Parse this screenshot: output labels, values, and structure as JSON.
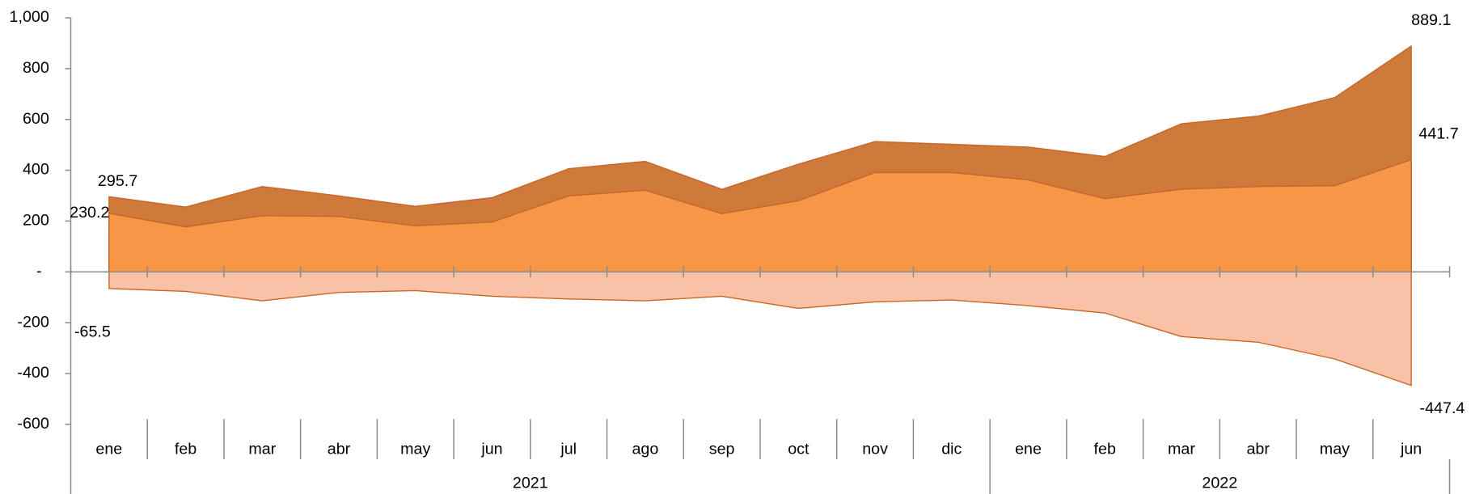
{
  "chart_data": {
    "type": "area",
    "categories": [
      "ene",
      "feb",
      "mar",
      "abr",
      "may",
      "jun",
      "jul",
      "ago",
      "sep",
      "oct",
      "nov",
      "dic",
      "ene",
      "feb",
      "mar",
      "abr",
      "may",
      "jun"
    ],
    "groups": [
      {
        "label": "2021",
        "span": 12
      },
      {
        "label": "2022",
        "span": 6
      }
    ],
    "series": [
      {
        "color": "#cd7a3a",
        "values": [
          295.7,
          255,
          336,
          299,
          258,
          292,
          406,
          435,
          325,
          424,
          513,
          502,
          491,
          454,
          583,
          613,
          686,
          889.1
        ],
        "value_labels": [
          "295.7",
          null,
          null,
          null,
          null,
          null,
          null,
          null,
          null,
          null,
          null,
          null,
          null,
          null,
          null,
          null,
          null,
          "889.1"
        ]
      },
      {
        "color": "#f79646",
        "values": [
          230.2,
          177,
          221,
          218,
          181,
          196,
          299,
          321,
          229,
          280,
          391,
          391,
          362,
          288,
          325,
          336,
          339,
          441.7
        ],
        "value_labels": [
          "230.2",
          null,
          null,
          null,
          null,
          null,
          null,
          null,
          null,
          null,
          null,
          null,
          null,
          null,
          null,
          null,
          null,
          "441.7"
        ]
      },
      {
        "color": "#f9c2a7",
        "values": [
          -65.5,
          -77,
          -114,
          -81,
          -74,
          -96,
          -107,
          -114,
          -96,
          -144,
          -118,
          -111,
          -133,
          -162,
          -255,
          -277,
          -343,
          -447.4
        ],
        "value_labels": [
          "-65.5",
          null,
          null,
          null,
          null,
          null,
          null,
          null,
          null,
          null,
          null,
          null,
          null,
          null,
          null,
          null,
          null,
          "-447.4"
        ]
      }
    ],
    "ylim": [
      -600,
      1000
    ],
    "yticks": [
      -600,
      -400,
      -200,
      {
        "value": 0,
        "label": "-"
      },
      200,
      400,
      600,
      800,
      {
        "value": 1000,
        "label": "1,000"
      }
    ]
  }
}
